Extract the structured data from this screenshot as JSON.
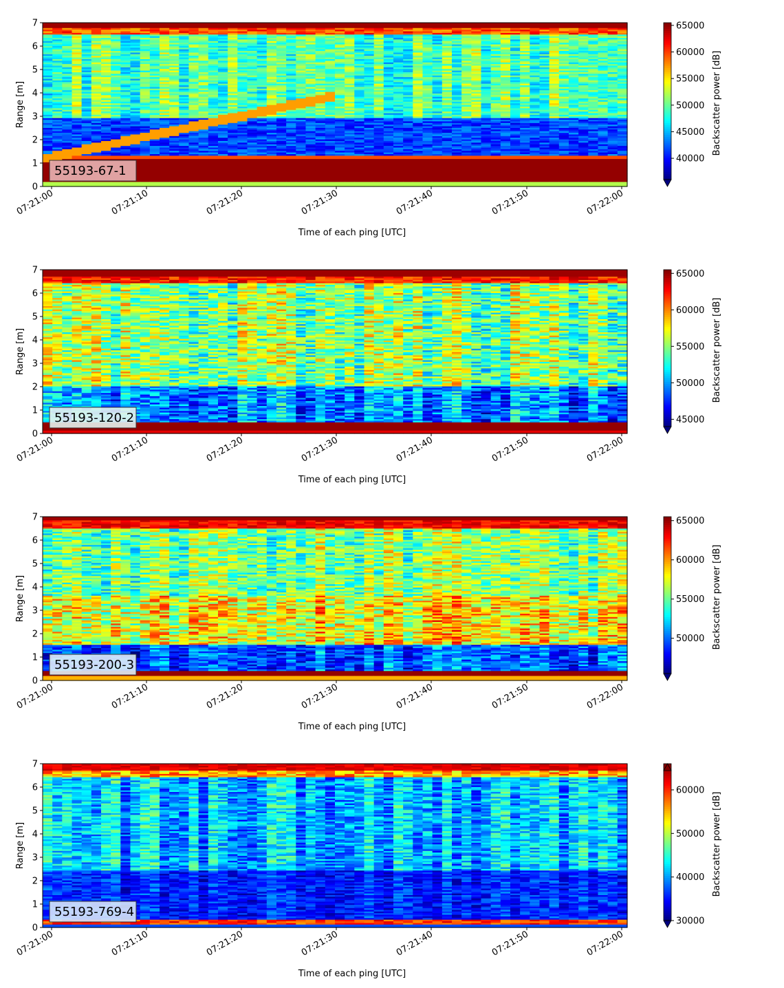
{
  "chart_data": [
    {
      "type": "heatmap",
      "label": "55193-67-1",
      "xlabel": "Time of each ping [UTC]",
      "ylabel": "Range [m]",
      "colorbar_label": "Backscatter power [dB]",
      "x_ticks": [
        "07:21:00",
        "07:21:10",
        "07:21:20",
        "07:21:30",
        "07:21:40",
        "07:21:50",
        "07:22:00"
      ],
      "y_ticks": [
        "0",
        "1",
        "2",
        "3",
        "4",
        "5",
        "6",
        "7"
      ],
      "ylim": [
        0,
        7
      ],
      "colorbar_ticks": [
        "40000",
        "45000",
        "50000",
        "55000",
        "60000",
        "65000"
      ],
      "clim": [
        36000,
        65500
      ],
      "colorbar_extend": "min",
      "colormap": "jet",
      "label_box_color": "#e8b4b4"
    },
    {
      "type": "heatmap",
      "label": "55193-120-2",
      "xlabel": "Time of each ping [UTC]",
      "ylabel": "Range [m]",
      "colorbar_label": "Backscatter power [dB]",
      "x_ticks": [
        "07:21:00",
        "07:21:10",
        "07:21:20",
        "07:21:30",
        "07:21:40",
        "07:21:50",
        "07:22:00"
      ],
      "y_ticks": [
        "0",
        "1",
        "2",
        "3",
        "4",
        "5",
        "6",
        "7"
      ],
      "ylim": [
        0,
        7
      ],
      "colorbar_ticks": [
        "45000",
        "50000",
        "55000",
        "60000",
        "65000"
      ],
      "clim": [
        44000,
        65500
      ],
      "colorbar_extend": "min",
      "colormap": "jet",
      "label_box_color": "#e3f2ee"
    },
    {
      "type": "heatmap",
      "label": "55193-200-3",
      "xlabel": "Time of each ping [UTC]",
      "ylabel": "Range [m]",
      "colorbar_label": "Backscatter power [dB]",
      "x_ticks": [
        "07:21:00",
        "07:21:10",
        "07:21:20",
        "07:21:30",
        "07:21:40",
        "07:21:50",
        "07:22:00"
      ],
      "y_ticks": [
        "0",
        "1",
        "2",
        "3",
        "4",
        "5",
        "6",
        "7"
      ],
      "ylim": [
        0,
        7
      ],
      "colorbar_ticks": [
        "50000",
        "55000",
        "60000",
        "65000"
      ],
      "clim": [
        45500,
        65500
      ],
      "colorbar_extend": "min",
      "colormap": "jet",
      "label_box_color": "#dfeef7"
    },
    {
      "type": "heatmap",
      "label": "55193-769-4",
      "xlabel": "Time of each ping [UTC]",
      "ylabel": "Range [m]",
      "colorbar_label": "Backscatter power [dB]",
      "x_ticks": [
        "07:21:00",
        "07:21:10",
        "07:21:20",
        "07:21:30",
        "07:21:40",
        "07:21:50",
        "07:22:00"
      ],
      "y_ticks": [
        "0",
        "1",
        "2",
        "3",
        "4",
        "5",
        "6",
        "7"
      ],
      "ylim": [
        0,
        7
      ],
      "colorbar_ticks": [
        "30000",
        "40000",
        "50000",
        "60000"
      ],
      "clim": [
        30000,
        66000
      ],
      "colorbar_extend": "both",
      "colormap": "jet",
      "label_box_color": "#d6e6fb"
    }
  ]
}
